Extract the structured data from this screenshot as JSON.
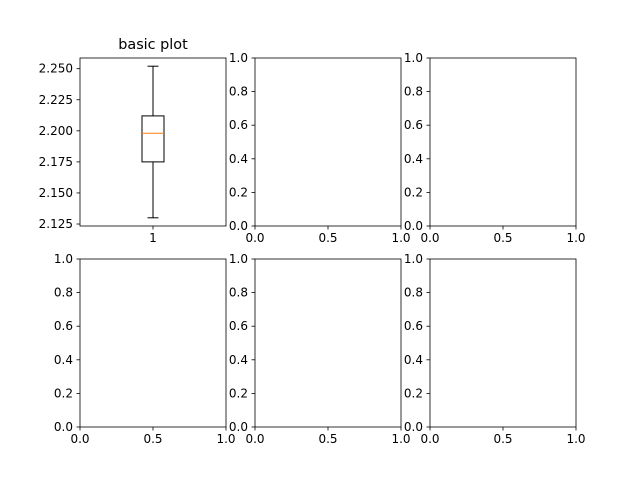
{
  "colors": {
    "box": "#000000",
    "median": "#ff7f0e",
    "background": "#ffffff"
  },
  "chart_data": [
    {
      "type": "box",
      "title": "basic plot",
      "categories": [
        "1"
      ],
      "box": {
        "whisker_low": 2.13,
        "q1": 2.175,
        "median": 2.198,
        "q3": 2.212,
        "whisker_high": 2.252
      },
      "ylim": [
        2.1234,
        2.2586
      ],
      "yticks": [
        "2.125",
        "2.150",
        "2.175",
        "2.200",
        "2.225",
        "2.250"
      ],
      "ytick_values": [
        2.125,
        2.15,
        2.175,
        2.2,
        2.225,
        2.25
      ]
    },
    {
      "type": "empty",
      "xlim": [
        0,
        1
      ],
      "ylim": [
        0,
        1
      ],
      "xticks": [
        "0.0",
        "0.5",
        "1.0"
      ],
      "yticks": [
        "0.0",
        "0.2",
        "0.4",
        "0.6",
        "0.8",
        "1.0"
      ]
    },
    {
      "type": "empty",
      "xlim": [
        0,
        1
      ],
      "ylim": [
        0,
        1
      ],
      "xticks": [
        "0.0",
        "0.5",
        "1.0"
      ],
      "yticks": [
        "0.0",
        "0.2",
        "0.4",
        "0.6",
        "0.8",
        "1.0"
      ]
    },
    {
      "type": "empty",
      "xlim": [
        0,
        1
      ],
      "ylim": [
        0,
        1
      ],
      "xticks": [
        "0.0",
        "0.5",
        "1.0"
      ],
      "yticks": [
        "0.0",
        "0.2",
        "0.4",
        "0.6",
        "0.8",
        "1.0"
      ]
    },
    {
      "type": "empty",
      "xlim": [
        0,
        1
      ],
      "ylim": [
        0,
        1
      ],
      "xticks": [
        "0.0",
        "0.5",
        "1.0"
      ],
      "yticks": [
        "0.0",
        "0.2",
        "0.4",
        "0.6",
        "0.8",
        "1.0"
      ]
    },
    {
      "type": "empty",
      "xlim": [
        0,
        1
      ],
      "ylim": [
        0,
        1
      ],
      "xticks": [
        "0.0",
        "0.5",
        "1.0"
      ],
      "yticks": [
        "0.0",
        "0.2",
        "0.4",
        "0.6",
        "0.8",
        "1.0"
      ]
    }
  ]
}
